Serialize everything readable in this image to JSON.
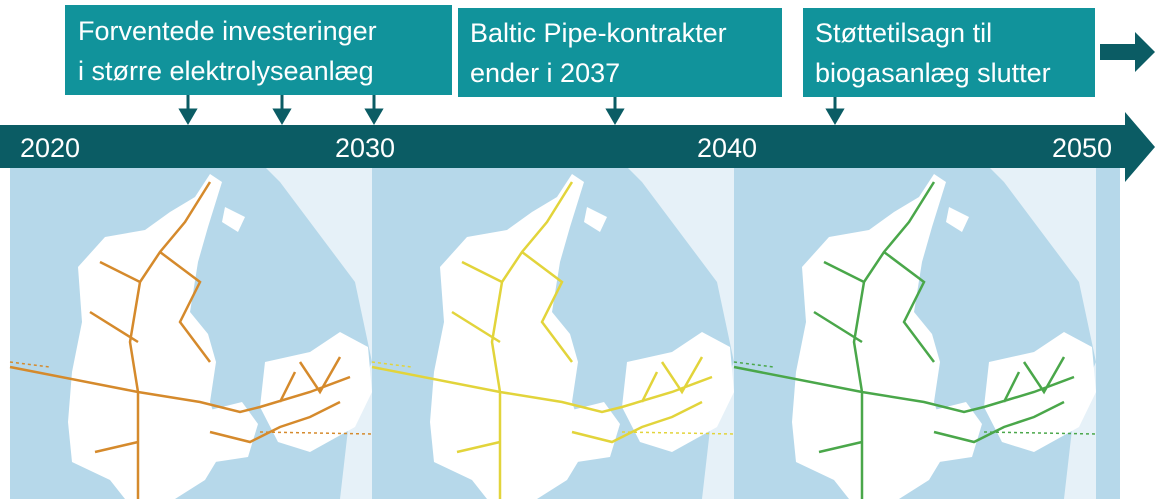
{
  "events": [
    {
      "lines": [
        "Forventede investeringer",
        "i større elektrolyseanlæg"
      ]
    },
    {
      "lines": [
        "Baltic Pipe-kontrakter",
        "ender i 2037"
      ]
    },
    {
      "lines": [
        "Støttetilsagn til",
        "biogasanlæg slutter"
      ]
    }
  ],
  "timeline": {
    "years": [
      "2020",
      "2030",
      "2040",
      "2050"
    ]
  }
}
